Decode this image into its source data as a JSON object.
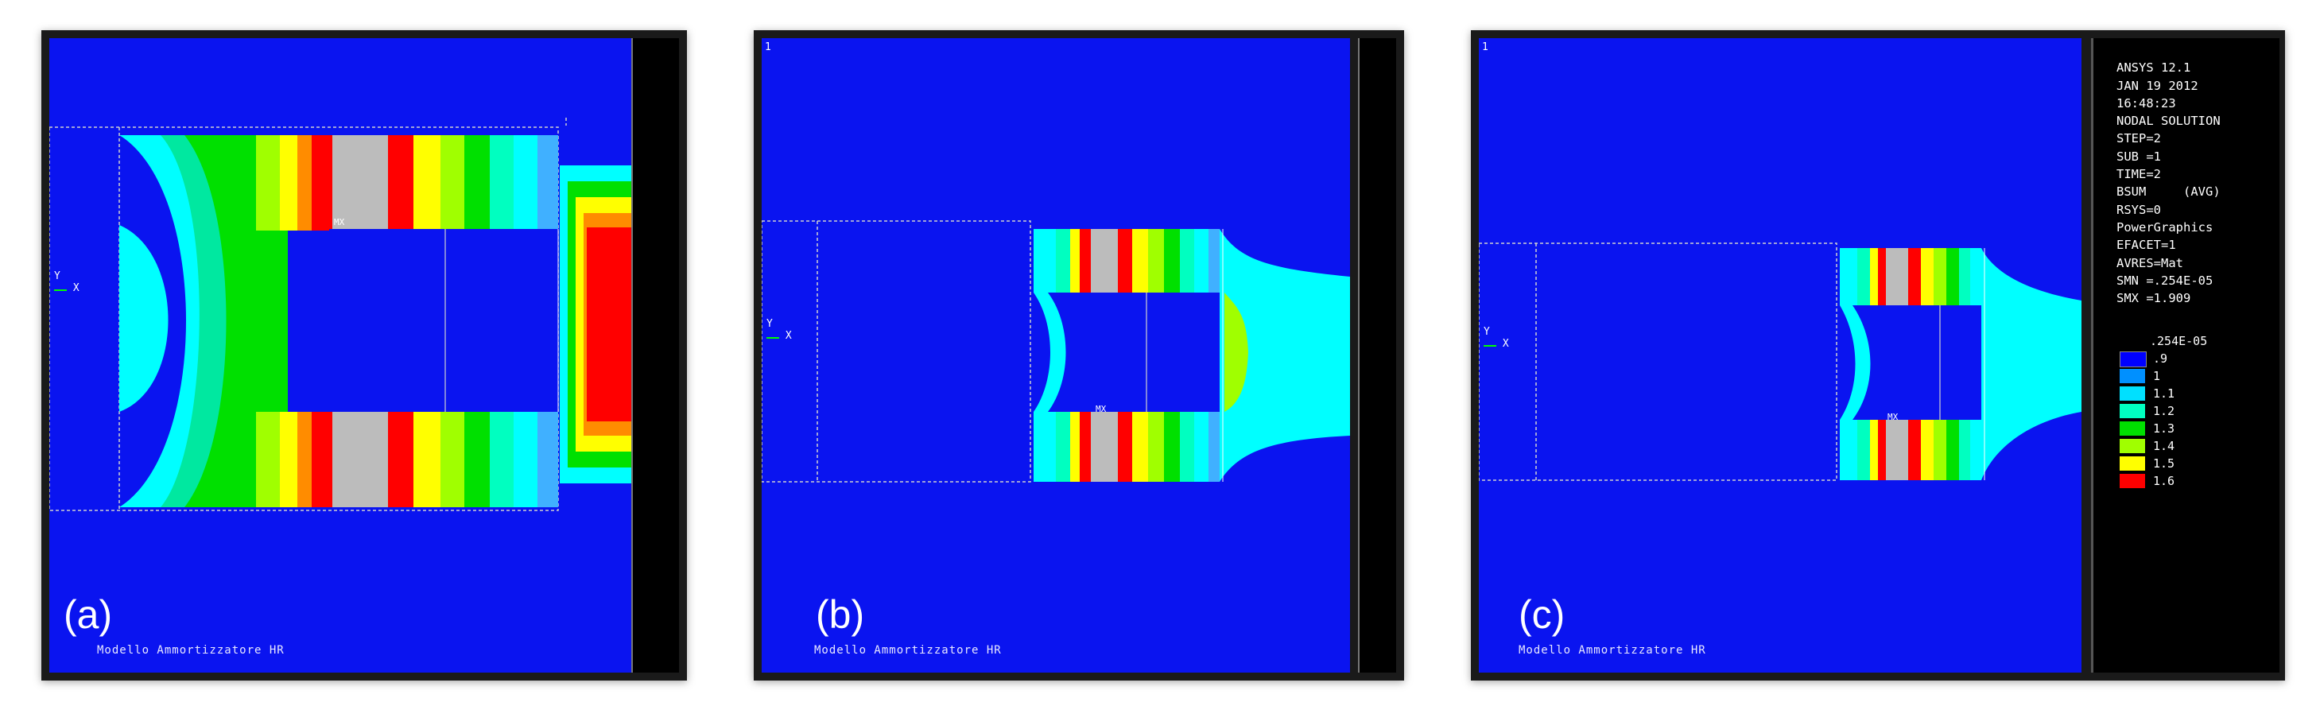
{
  "panels": [
    {
      "label": "(a)",
      "caption": "Modello Ammortizzatore HR",
      "window_number": ""
    },
    {
      "label": "(b)",
      "caption": "Modello Ammortizzatore HR",
      "window_number": "1"
    },
    {
      "label": "(c)",
      "caption": "Modello Ammortizzatore HR",
      "window_number": "1"
    }
  ],
  "axis_triad": {
    "y": "Y",
    "x": "X"
  },
  "mx_marker": "MX",
  "ansys_info": [
    "ANSYS 12.1",
    "JAN 19 2012",
    "16:48:23",
    "NODAL SOLUTION",
    "STEP=2",
    "SUB =1",
    "TIME=2",
    "BSUM     (AVG)",
    "RSYS=0",
    "PowerGraphics",
    "EFACET=1",
    "AVRES=Mat",
    "SMN =.254E-05",
    "SMX =1.909"
  ],
  "legend": {
    "top_label": ".254E-05",
    "labels": [
      ".9",
      "1",
      "1.1",
      "1.2",
      "1.3",
      "1.4",
      "1.5",
      "1.6"
    ],
    "colors": [
      "#0000ff",
      "#0090ff",
      "#00e0ff",
      "#00ffc0",
      "#00e000",
      "#a0ff00",
      "#ffff00",
      "#ff0000"
    ]
  },
  "colors": {
    "background": "#0a14f0",
    "red": "#ff0000",
    "orange": "#ff8c00",
    "yellow": "#ffff00",
    "lime": "#a0ff00",
    "green": "#00e000",
    "seafoam": "#00e8a0",
    "cyan": "#00ffff",
    "lightblue": "#40b0ff",
    "grey": "#bcbcbc"
  }
}
